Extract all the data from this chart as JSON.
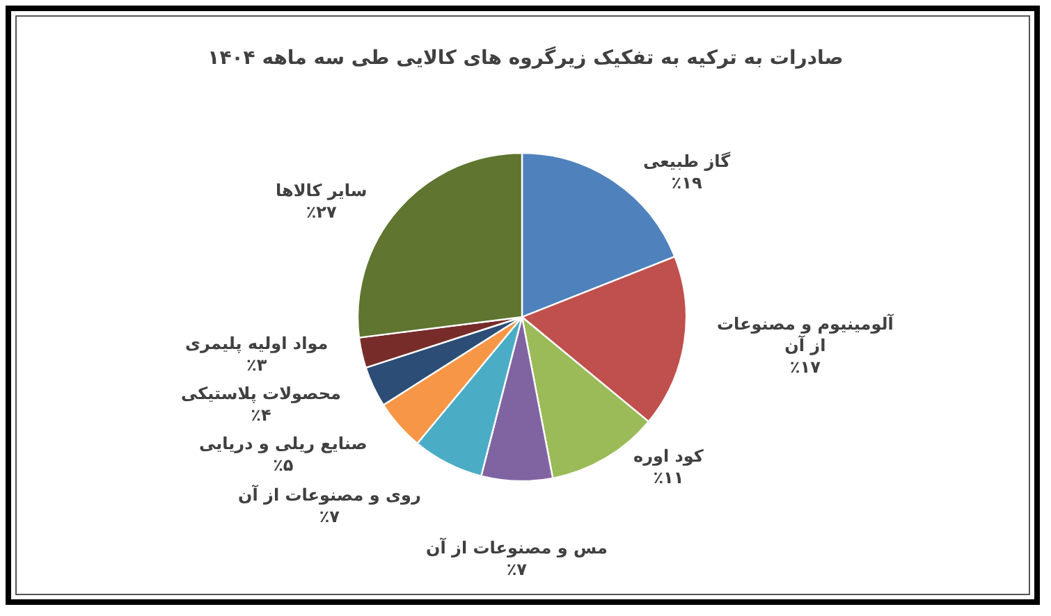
{
  "chart_data": {
    "type": "pie",
    "title": "صادرات به ترکیه به تفکیک زیرگروه های کالایی طی سه ماهه ۱۴۰۴",
    "categories": [
      "گاز طبیعی",
      "آلومینیوم و مصنوعات از آن",
      "کود اوره",
      "مس و مصنوعات از آن",
      "روی و مصنوعات از آن",
      "صنایع ریلی و دریایی",
      "محصولات پلاستیکی",
      "مواد اولیه پلیمری",
      "سایر کالاها"
    ],
    "values": [
      19,
      17,
      11,
      7,
      7,
      5,
      4,
      3,
      27
    ],
    "value_labels": [
      "٪۱۹",
      "٪۱۷",
      "٪۱۱",
      "٪۷",
      "٪۷",
      "٪۵",
      "٪۴",
      "٪۳",
      "٪۲۷"
    ],
    "colors": [
      "#4f81bd",
      "#c0504d",
      "#9bbb59",
      "#8064a2",
      "#4bacc6",
      "#f79646",
      "#2c4d75",
      "#772c2a",
      "#5f7530"
    ]
  }
}
